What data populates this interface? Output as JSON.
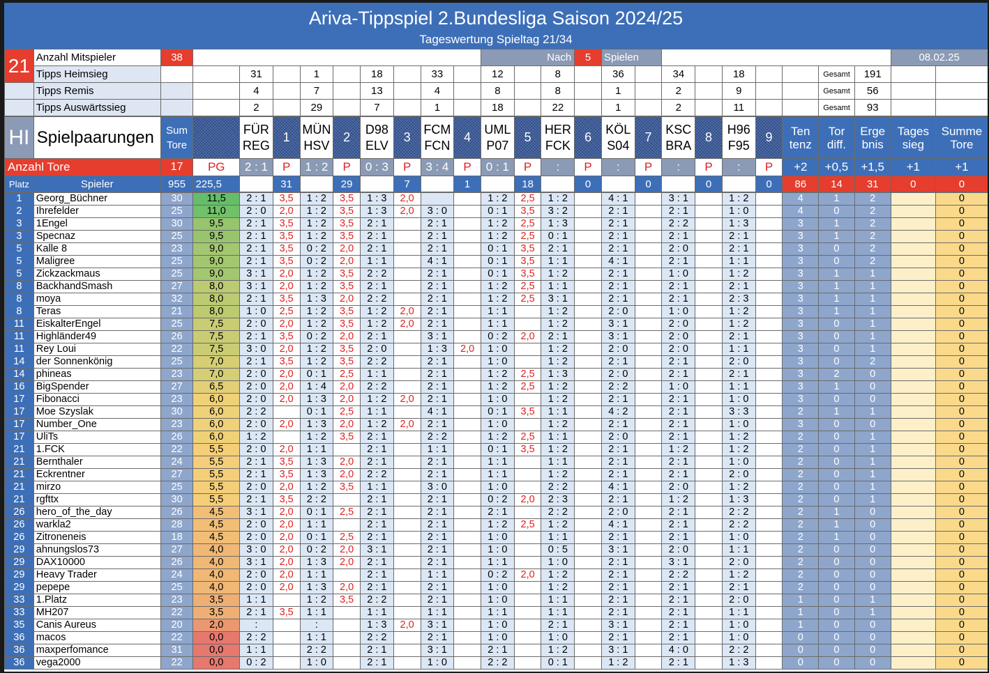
{
  "title": "Ariva-Tippspiel 2.Bundesliga Saison 2024/25",
  "subtitle": "Tageswertung Spieltag 21/34",
  "day_badge": "21",
  "hl_badge": "HI",
  "info": {
    "players_label": "Anzahl Mitspieler",
    "players_value": "38",
    "after_label": "Nach",
    "after_value": "5",
    "after_suffix": "Spielen",
    "date": "08.02.25",
    "home_label": "Tipps Heimsieg",
    "draw_label": "Tipps Remis",
    "away_label": "Tipps Auswärtssieg",
    "gesamt": "Gesamt",
    "home_counts": [
      "31",
      "1",
      "18",
      "33",
      "12",
      "8",
      "36",
      "34",
      "18"
    ],
    "home_total": "191",
    "draw_counts": [
      "4",
      "7",
      "13",
      "4",
      "8",
      "8",
      "1",
      "2",
      "9"
    ],
    "draw_total": "56",
    "away_counts": [
      "2",
      "29",
      "7",
      "1",
      "18",
      "22",
      "1",
      "2",
      "11"
    ],
    "away_total": "93"
  },
  "header": {
    "pairings_label": "Spielpaarungen",
    "sum_tore": [
      "Sum",
      "Tore"
    ],
    "matches": [
      {
        "home": "FÜR",
        "away": "REG",
        "num": "1",
        "score": "2 : 1",
        "count": "31"
      },
      {
        "home": "MÜN",
        "away": "HSV",
        "num": "2",
        "score": "1 : 2",
        "count": "29"
      },
      {
        "home": "D98",
        "away": "ELV",
        "num": "3",
        "score": "0 : 3",
        "count": "7"
      },
      {
        "home": "FCM",
        "away": "FCN",
        "num": "4",
        "score": "3 : 4",
        "count": "1"
      },
      {
        "home": "UML",
        "away": "P07",
        "num": "5",
        "score": "0 : 1",
        "count": "18"
      },
      {
        "home": "HER",
        "away": "FCK",
        "num": "6",
        "score": ":",
        "count": "0"
      },
      {
        "home": "KÖL",
        "away": "S04",
        "num": "7",
        "score": ":",
        "count": "0"
      },
      {
        "home": "KSC",
        "away": "BRA",
        "num": "8",
        "score": ":",
        "count": "0"
      },
      {
        "home": "H96",
        "away": "F95",
        "num": "9",
        "score": ":",
        "count": "0"
      }
    ],
    "p_label": "P",
    "bonus": [
      {
        "line1": "Ten",
        "line2": "tenz",
        "line3": "+2",
        "count": "86"
      },
      {
        "line1": "Tor",
        "line2": "diff.",
        "line3": "+0,5",
        "count": "14"
      },
      {
        "line1": "Erge",
        "line2": "bnis",
        "line3": "+1,5",
        "count": "31"
      },
      {
        "line1": "Tages",
        "line2": "sieg",
        "line3": "+1",
        "count": "0"
      },
      {
        "line1": "Summe",
        "line2": "Tore",
        "line3": "+1",
        "count": "0"
      }
    ],
    "anzahl_tore_label": "Anzahl Tore",
    "anzahl_tore_value": "17",
    "pg_label": "PG",
    "platz_label": "Platz",
    "spieler_label": "Spieler",
    "sum_total": "955",
    "pg_total": "225,5"
  },
  "players": [
    {
      "rank": "1",
      "name": "Georg_Büchner",
      "sum": "30",
      "pg": "11,5",
      "tips": [
        "2 : 1",
        "1 : 2",
        "1 : 3",
        "",
        "1 : 2",
        "1 : 2",
        "4 : 1",
        "3 : 1",
        "1 : 2"
      ],
      "pts": [
        "3,5",
        "3,5",
        "2,0",
        "",
        "2,5"
      ],
      "t": "4",
      "d": "1",
      "e": "2",
      "w": "",
      "s": "0"
    },
    {
      "rank": "2",
      "name": "Ihrefelder",
      "sum": "25",
      "pg": "11,0",
      "tips": [
        "2 : 0",
        "1 : 2",
        "1 : 3",
        "3 : 0",
        "0 : 1",
        "3 : 2",
        "2 : 1",
        "2 : 1",
        "1 : 0"
      ],
      "pts": [
        "2,0",
        "3,5",
        "2,0",
        "",
        "3,5"
      ],
      "t": "4",
      "d": "0",
      "e": "2",
      "w": "",
      "s": "0"
    },
    {
      "rank": "3",
      "name": "1Engel",
      "sum": "30",
      "pg": "9,5",
      "tips": [
        "2 : 1",
        "1 : 2",
        "2 : 1",
        "2 : 1",
        "1 : 2",
        "1 : 3",
        "2 : 1",
        "2 : 2",
        "1 : 3"
      ],
      "pts": [
        "3,5",
        "3,5",
        "",
        "",
        "2,5"
      ],
      "t": "3",
      "d": "1",
      "e": "2",
      "w": "",
      "s": "0"
    },
    {
      "rank": "3",
      "name": "Specnaz",
      "sum": "25",
      "pg": "9,5",
      "tips": [
        "2 : 1",
        "1 : 2",
        "2 : 1",
        "2 : 1",
        "1 : 2",
        "0 : 1",
        "2 : 1",
        "2 : 1",
        "2 : 1"
      ],
      "pts": [
        "3,5",
        "3,5",
        "",
        "",
        "2,5"
      ],
      "t": "3",
      "d": "1",
      "e": "2",
      "w": "",
      "s": "0"
    },
    {
      "rank": "5",
      "name": "Kalle 8",
      "sum": "23",
      "pg": "9,0",
      "tips": [
        "2 : 1",
        "0 : 2",
        "2 : 1",
        "2 : 1",
        "0 : 1",
        "2 : 1",
        "2 : 1",
        "2 : 0",
        "2 : 1"
      ],
      "pts": [
        "3,5",
        "2,0",
        "",
        "",
        "3,5"
      ],
      "t": "3",
      "d": "0",
      "e": "2",
      "w": "",
      "s": "0"
    },
    {
      "rank": "5",
      "name": "Maligree",
      "sum": "25",
      "pg": "9,0",
      "tips": [
        "2 : 1",
        "0 : 2",
        "1 : 1",
        "4 : 1",
        "0 : 1",
        "1 : 1",
        "4 : 1",
        "2 : 1",
        "1 : 1"
      ],
      "pts": [
        "3,5",
        "2,0",
        "",
        "",
        "3,5"
      ],
      "t": "3",
      "d": "0",
      "e": "2",
      "w": "",
      "s": "0"
    },
    {
      "rank": "5",
      "name": "Zickzackmaus",
      "sum": "25",
      "pg": "9,0",
      "tips": [
        "3 : 1",
        "1 : 2",
        "2 : 2",
        "2 : 1",
        "0 : 1",
        "1 : 2",
        "2 : 1",
        "1 : 0",
        "1 : 2"
      ],
      "pts": [
        "2,0",
        "3,5",
        "",
        "",
        "3,5"
      ],
      "t": "3",
      "d": "1",
      "e": "1",
      "w": "",
      "s": "0"
    },
    {
      "rank": "8",
      "name": "BackhandSmash",
      "sum": "27",
      "pg": "8,0",
      "tips": [
        "3 : 1",
        "1 : 2",
        "2 : 1",
        "2 : 1",
        "1 : 2",
        "1 : 1",
        "2 : 1",
        "2 : 1",
        "2 : 1"
      ],
      "pts": [
        "2,0",
        "3,5",
        "",
        "",
        "2,5"
      ],
      "t": "3",
      "d": "1",
      "e": "1",
      "w": "",
      "s": "0"
    },
    {
      "rank": "8",
      "name": "moya",
      "sum": "32",
      "pg": "8,0",
      "tips": [
        "2 : 1",
        "1 : 3",
        "2 : 2",
        "2 : 1",
        "1 : 2",
        "3 : 1",
        "2 : 1",
        "2 : 1",
        "2 : 3"
      ],
      "pts": [
        "3,5",
        "2,0",
        "",
        "",
        "2,5"
      ],
      "t": "3",
      "d": "1",
      "e": "1",
      "w": "",
      "s": "0"
    },
    {
      "rank": "8",
      "name": "Teras",
      "sum": "21",
      "pg": "8,0",
      "tips": [
        "1 : 0",
        "1 : 2",
        "1 : 2",
        "2 : 1",
        "1 : 1",
        "1 : 2",
        "2 : 0",
        "1 : 0",
        "1 : 2"
      ],
      "pts": [
        "2,5",
        "3,5",
        "2,0",
        "",
        ""
      ],
      "t": "3",
      "d": "1",
      "e": "1",
      "w": "",
      "s": "0"
    },
    {
      "rank": "11",
      "name": "EiskalterEngel",
      "sum": "25",
      "pg": "7,5",
      "tips": [
        "2 : 0",
        "1 : 2",
        "1 : 2",
        "2 : 1",
        "1 : 1",
        "1 : 2",
        "3 : 1",
        "2 : 0",
        "1 : 2"
      ],
      "pts": [
        "2,0",
        "3,5",
        "2,0",
        "",
        ""
      ],
      "t": "3",
      "d": "0",
      "e": "1",
      "w": "",
      "s": "0"
    },
    {
      "rank": "11",
      "name": "Highländer49",
      "sum": "26",
      "pg": "7,5",
      "tips": [
        "2 : 1",
        "0 : 2",
        "2 : 1",
        "3 : 1",
        "0 : 2",
        "2 : 1",
        "3 : 1",
        "2 : 0",
        "2 : 1"
      ],
      "pts": [
        "3,5",
        "2,0",
        "",
        "",
        "2,0"
      ],
      "t": "3",
      "d": "0",
      "e": "1",
      "w": "",
      "s": "0"
    },
    {
      "rank": "11",
      "name": "Rey Loui",
      "sum": "22",
      "pg": "7,5",
      "tips": [
        "3 : 0",
        "1 : 2",
        "2 : 0",
        "1 : 3",
        "1 : 0",
        "1 : 2",
        "2 : 0",
        "2 : 0",
        "1 : 1"
      ],
      "pts": [
        "2,0",
        "3,5",
        "",
        "2,0",
        ""
      ],
      "t": "3",
      "d": "0",
      "e": "1",
      "w": "",
      "s": "0"
    },
    {
      "rank": "14",
      "name": "der Sonnenkönig",
      "sum": "25",
      "pg": "7,0",
      "tips": [
        "2 : 1",
        "1 : 2",
        "2 : 2",
        "2 : 1",
        "1 : 0",
        "1 : 2",
        "2 : 1",
        "2 : 1",
        "2 : 0"
      ],
      "pts": [
        "3,5",
        "3,5",
        "",
        "",
        ""
      ],
      "t": "3",
      "d": "0",
      "e": "2",
      "w": "",
      "s": "0"
    },
    {
      "rank": "14",
      "name": "phineas",
      "sum": "23",
      "pg": "7,0",
      "tips": [
        "2 : 0",
        "0 : 1",
        "1 : 1",
        "2 : 1",
        "1 : 2",
        "1 : 3",
        "2 : 0",
        "2 : 1",
        "2 : 1"
      ],
      "pts": [
        "2,0",
        "2,5",
        "",
        "",
        "2,5"
      ],
      "t": "3",
      "d": "2",
      "e": "0",
      "w": "",
      "s": "0"
    },
    {
      "rank": "16",
      "name": "BigSpender",
      "sum": "27",
      "pg": "6,5",
      "tips": [
        "2 : 0",
        "1 : 4",
        "2 : 2",
        "2 : 1",
        "1 : 2",
        "1 : 2",
        "2 : 2",
        "1 : 0",
        "1 : 1"
      ],
      "pts": [
        "2,0",
        "2,0",
        "",
        "",
        "2,5"
      ],
      "t": "3",
      "d": "1",
      "e": "0",
      "w": "",
      "s": "0"
    },
    {
      "rank": "17",
      "name": "Fibonacci",
      "sum": "23",
      "pg": "6,0",
      "tips": [
        "2 : 0",
        "1 : 3",
        "1 : 2",
        "2 : 1",
        "1 : 0",
        "1 : 2",
        "2 : 1",
        "2 : 1",
        "1 : 0"
      ],
      "pts": [
        "2,0",
        "2,0",
        "2,0",
        "",
        ""
      ],
      "t": "3",
      "d": "0",
      "e": "0",
      "w": "",
      "s": "0"
    },
    {
      "rank": "17",
      "name": "Moe Szyslak",
      "sum": "30",
      "pg": "6,0",
      "tips": [
        "2 : 2",
        "0 : 1",
        "1 : 1",
        "4 : 1",
        "0 : 1",
        "1 : 1",
        "4 : 2",
        "2 : 1",
        "3 : 3"
      ],
      "pts": [
        "",
        "2,5",
        "",
        "",
        "3,5"
      ],
      "t": "2",
      "d": "1",
      "e": "1",
      "w": "",
      "s": "0"
    },
    {
      "rank": "17",
      "name": "Number_One",
      "sum": "23",
      "pg": "6,0",
      "tips": [
        "2 : 0",
        "1 : 3",
        "1 : 2",
        "2 : 1",
        "1 : 0",
        "1 : 2",
        "2 : 1",
        "2 : 1",
        "1 : 0"
      ],
      "pts": [
        "2,0",
        "2,0",
        "2,0",
        "",
        ""
      ],
      "t": "3",
      "d": "0",
      "e": "0",
      "w": "",
      "s": "0"
    },
    {
      "rank": "17",
      "name": "UliTs",
      "sum": "26",
      "pg": "6,0",
      "tips": [
        "1 : 2",
        "1 : 2",
        "2 : 1",
        "2 : 2",
        "1 : 2",
        "1 : 1",
        "2 : 0",
        "2 : 1",
        "1 : 2"
      ],
      "pts": [
        "",
        "3,5",
        "",
        "",
        "2,5"
      ],
      "t": "2",
      "d": "0",
      "e": "1",
      "w": "",
      "s": "0"
    },
    {
      "rank": "21",
      "name": "1.FCK",
      "sum": "22",
      "pg": "5,5",
      "tips": [
        "2 : 0",
        "1 : 1",
        "2 : 1",
        "1 : 1",
        "0 : 1",
        "1 : 2",
        "2 : 1",
        "1 : 2",
        "1 : 2"
      ],
      "pts": [
        "2,0",
        "",
        "",
        "",
        "3,5"
      ],
      "t": "2",
      "d": "0",
      "e": "1",
      "w": "",
      "s": "0"
    },
    {
      "rank": "21",
      "name": "Bernthaler",
      "sum": "24",
      "pg": "5,5",
      "tips": [
        "2 : 1",
        "1 : 3",
        "2 : 1",
        "2 : 1",
        "1 : 1",
        "1 : 1",
        "2 : 1",
        "2 : 1",
        "1 : 0"
      ],
      "pts": [
        "3,5",
        "2,0",
        "",
        "",
        ""
      ],
      "t": "2",
      "d": "0",
      "e": "1",
      "w": "",
      "s": "0"
    },
    {
      "rank": "21",
      "name": "Eckrentner",
      "sum": "27",
      "pg": "5,5",
      "tips": [
        "2 : 1",
        "1 : 3",
        "2 : 2",
        "2 : 1",
        "1 : 1",
        "1 : 2",
        "2 : 1",
        "2 : 1",
        "2 : 0"
      ],
      "pts": [
        "3,5",
        "2,0",
        "",
        "",
        ""
      ],
      "t": "2",
      "d": "0",
      "e": "1",
      "w": "",
      "s": "0"
    },
    {
      "rank": "21",
      "name": "mirzo",
      "sum": "25",
      "pg": "5,5",
      "tips": [
        "2 : 0",
        "1 : 2",
        "1 : 1",
        "3 : 0",
        "1 : 0",
        "2 : 2",
        "4 : 1",
        "2 : 0",
        "1 : 2"
      ],
      "pts": [
        "2,0",
        "3,5",
        "",
        "",
        ""
      ],
      "t": "2",
      "d": "0",
      "e": "1",
      "w": "",
      "s": "0"
    },
    {
      "rank": "21",
      "name": "rgfttx",
      "sum": "30",
      "pg": "5,5",
      "tips": [
        "2 : 1",
        "2 : 2",
        "2 : 1",
        "2 : 1",
        "0 : 2",
        "2 : 3",
        "2 : 1",
        "1 : 2",
        "1 : 3"
      ],
      "pts": [
        "3,5",
        "",
        "",
        "",
        "2,0"
      ],
      "t": "2",
      "d": "0",
      "e": "1",
      "w": "",
      "s": "0"
    },
    {
      "rank": "26",
      "name": "hero_of_the_day",
      "sum": "26",
      "pg": "4,5",
      "tips": [
        "3 : 1",
        "0 : 1",
        "2 : 1",
        "2 : 1",
        "2 : 1",
        "2 : 2",
        "2 : 0",
        "2 : 1",
        "2 : 2"
      ],
      "pts": [
        "2,0",
        "2,5",
        "",
        "",
        ""
      ],
      "t": "2",
      "d": "1",
      "e": "0",
      "w": "",
      "s": "0"
    },
    {
      "rank": "26",
      "name": "warkla2",
      "sum": "28",
      "pg": "4,5",
      "tips": [
        "2 : 0",
        "1 : 1",
        "2 : 1",
        "2 : 1",
        "1 : 2",
        "1 : 2",
        "4 : 1",
        "2 : 1",
        "2 : 2"
      ],
      "pts": [
        "2,0",
        "",
        "",
        "",
        "2,5"
      ],
      "t": "2",
      "d": "1",
      "e": "0",
      "w": "",
      "s": "0"
    },
    {
      "rank": "26",
      "name": "Zitroneneis",
      "sum": "18",
      "pg": "4,5",
      "tips": [
        "2 : 0",
        "0 : 1",
        "2 : 1",
        "2 : 1",
        "1 : 0",
        "1 : 1",
        "2 : 1",
        "2 : 1",
        "1 : 0"
      ],
      "pts": [
        "2,0",
        "2,5",
        "",
        "",
        ""
      ],
      "t": "2",
      "d": "1",
      "e": "0",
      "w": "",
      "s": "0"
    },
    {
      "rank": "29",
      "name": "ahnungslos73",
      "sum": "27",
      "pg": "4,0",
      "tips": [
        "3 : 0",
        "0 : 2",
        "3 : 1",
        "2 : 1",
        "1 : 0",
        "0 : 5",
        "3 : 1",
        "2 : 0",
        "1 : 1"
      ],
      "pts": [
        "2,0",
        "2,0",
        "",
        "",
        ""
      ],
      "t": "2",
      "d": "0",
      "e": "0",
      "w": "",
      "s": "0"
    },
    {
      "rank": "29",
      "name": "DAX10000",
      "sum": "26",
      "pg": "4,0",
      "tips": [
        "3 : 1",
        "1 : 3",
        "2 : 1",
        "2 : 1",
        "1 : 1",
        "1 : 0",
        "2 : 1",
        "3 : 1",
        "2 : 0"
      ],
      "pts": [
        "2,0",
        "2,0",
        "",
        "",
        ""
      ],
      "t": "2",
      "d": "0",
      "e": "0",
      "w": "",
      "s": "0"
    },
    {
      "rank": "29",
      "name": "Heavy Trader",
      "sum": "24",
      "pg": "4,0",
      "tips": [
        "2 : 0",
        "1 : 1",
        "2 : 1",
        "1 : 1",
        "0 : 2",
        "1 : 2",
        "2 : 1",
        "2 : 2",
        "1 : 2"
      ],
      "pts": [
        "2,0",
        "",
        "",
        "",
        "2,0"
      ],
      "t": "2",
      "d": "0",
      "e": "0",
      "w": "",
      "s": "0"
    },
    {
      "rank": "29",
      "name": "pepepe",
      "sum": "25",
      "pg": "4,0",
      "tips": [
        "2 : 0",
        "1 : 3",
        "2 : 1",
        "2 : 1",
        "1 : 0",
        "1 : 2",
        "2 : 1",
        "2 : 1",
        "2 : 1"
      ],
      "pts": [
        "2,0",
        "2,0",
        "",
        "",
        ""
      ],
      "t": "2",
      "d": "0",
      "e": "0",
      "w": "",
      "s": "0"
    },
    {
      "rank": "33",
      "name": "1.Platz",
      "sum": "23",
      "pg": "3,5",
      "tips": [
        "1 : 1",
        "1 : 2",
        "2 : 2",
        "2 : 1",
        "1 : 0",
        "1 : 1",
        "2 : 1",
        "2 : 1",
        "2 : 0"
      ],
      "pts": [
        "",
        "3,5",
        "",
        "",
        ""
      ],
      "t": "1",
      "d": "0",
      "e": "1",
      "w": "",
      "s": "0"
    },
    {
      "rank": "33",
      "name": "MH207",
      "sum": "22",
      "pg": "3,5",
      "tips": [
        "2 : 1",
        "1 : 1",
        "1 : 1",
        "1 : 1",
        "1 : 1",
        "1 : 1",
        "2 : 1",
        "2 : 1",
        "1 : 1"
      ],
      "pts": [
        "3,5",
        "",
        "",
        "",
        ""
      ],
      "t": "1",
      "d": "0",
      "e": "1",
      "w": "",
      "s": "0"
    },
    {
      "rank": "35",
      "name": "Canis Aureus",
      "sum": "20",
      "pg": "2,0",
      "tips": [
        ":",
        ":",
        "1 : 3",
        "3 : 1",
        "1 : 0",
        "2 : 1",
        "3 : 1",
        "2 : 1",
        "1 : 0"
      ],
      "pts": [
        "",
        "",
        "2,0",
        "",
        ""
      ],
      "t": "1",
      "d": "0",
      "e": "0",
      "w": "",
      "s": "0"
    },
    {
      "rank": "36",
      "name": "macos",
      "sum": "22",
      "pg": "0,0",
      "tips": [
        "2 : 2",
        "1 : 1",
        "2 : 2",
        "2 : 1",
        "1 : 0",
        "1 : 0",
        "2 : 1",
        "2 : 1",
        "1 : 0"
      ],
      "pts": [
        "",
        "",
        "",
        "",
        ""
      ],
      "t": "0",
      "d": "0",
      "e": "0",
      "w": "",
      "s": "0"
    },
    {
      "rank": "36",
      "name": "maxperfomance",
      "sum": "31",
      "pg": "0,0",
      "tips": [
        "1 : 1",
        "2 : 2",
        "2 : 1",
        "3 : 1",
        "2 : 1",
        "1 : 2",
        "3 : 1",
        "4 : 0",
        "2 : 2"
      ],
      "pts": [
        "",
        "",
        "",
        "",
        ""
      ],
      "t": "0",
      "d": "0",
      "e": "0",
      "w": "",
      "s": "0"
    },
    {
      "rank": "36",
      "name": "vega2000",
      "sum": "22",
      "pg": "0,0",
      "tips": [
        "0 : 2",
        "1 : 0",
        "2 : 1",
        "1 : 0",
        "2 : 2",
        "0 : 1",
        "1 : 2",
        "2 : 1",
        "1 : 3"
      ],
      "pts": [
        "",
        "",
        "",
        "",
        ""
      ],
      "t": "0",
      "d": "0",
      "e": "0",
      "w": "",
      "s": "0"
    }
  ]
}
